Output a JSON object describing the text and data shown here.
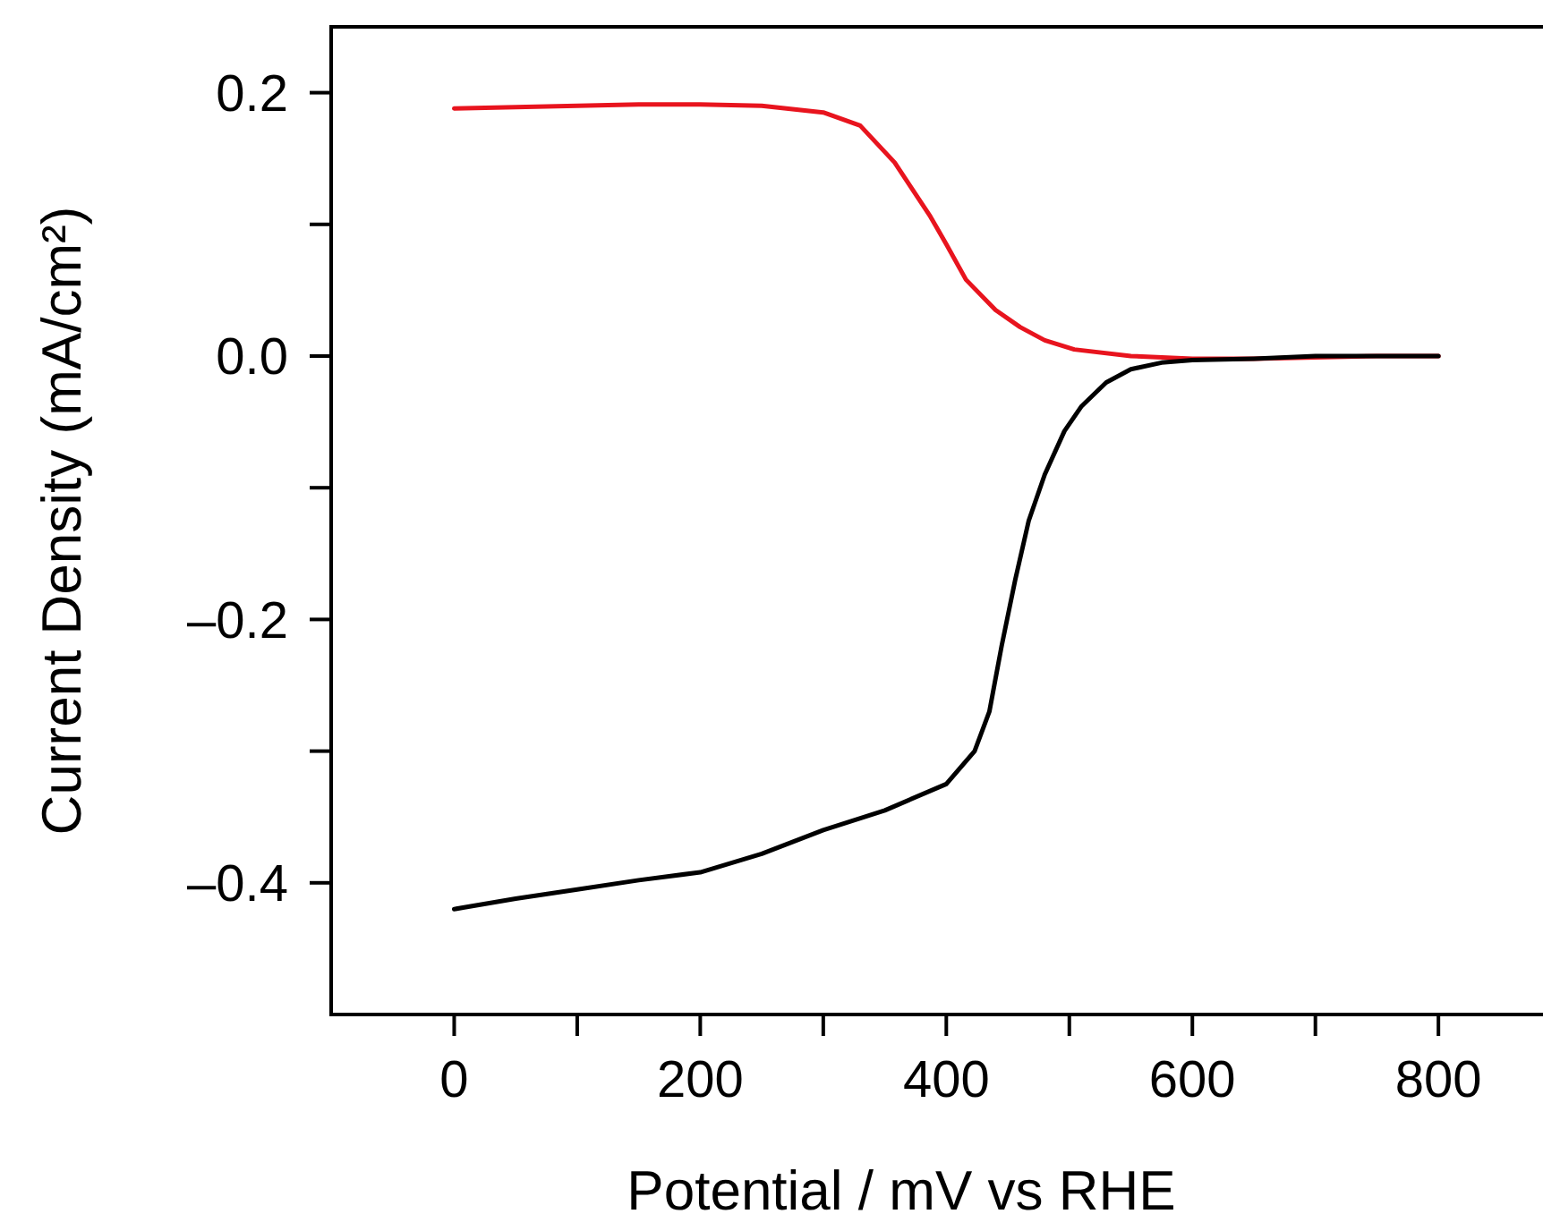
{
  "chart_data": {
    "type": "line",
    "xlabel": "Potential / mV vs RHE",
    "ylabel": "Current Density (mA/cm²)",
    "xlim": [
      -100,
      885
    ],
    "ylim": [
      -0.5,
      0.25
    ],
    "xticks": [
      0,
      {
        "value": 100,
        "label": null
      },
      200,
      {
        "value": 300,
        "label": null
      },
      400,
      {
        "value": 500,
        "label": null
      },
      600,
      {
        "value": 700,
        "label": null
      },
      800
    ],
    "yticks": [
      0.2,
      {
        "value": 0.1,
        "label": null
      },
      {
        "value": 0,
        "label": "0.0"
      },
      {
        "value": -0.1,
        "label": null
      },
      {
        "value": -0.2,
        "label": "–0.2"
      },
      {
        "value": -0.3,
        "label": null
      },
      {
        "value": -0.4,
        "label": "–0.4"
      }
    ],
    "grid": false,
    "marker": "none",
    "line_style": "solid",
    "series": [
      {
        "color": "#e8141e",
        "x": [
          0,
          50,
          100,
          150,
          200,
          250,
          300,
          330,
          358,
          387,
          400,
          416,
          440,
          460,
          480,
          504,
          550,
          600,
          650,
          700,
          750,
          800
        ],
        "values": [
          0.188,
          0.189,
          0.19,
          0.191,
          0.191,
          0.19,
          0.185,
          0.175,
          0.147,
          0.106,
          0.085,
          0.058,
          0.035,
          0.022,
          0.012,
          0.005,
          0.0,
          -0.002,
          -0.002,
          -0.001,
          0.0,
          0.0
        ]
      },
      {
        "color": "#000000",
        "x": [
          0,
          50,
          100,
          150,
          200,
          250,
          300,
          350,
          400,
          423,
          435,
          445,
          456,
          467,
          480,
          496,
          510,
          530,
          550,
          575,
          600,
          650,
          700,
          750,
          800
        ],
        "values": [
          -0.42,
          -0.412,
          -0.405,
          -0.398,
          -0.392,
          -0.378,
          -0.36,
          -0.345,
          -0.325,
          -0.3,
          -0.27,
          -0.22,
          -0.17,
          -0.125,
          -0.09,
          -0.057,
          -0.038,
          -0.02,
          -0.01,
          -0.005,
          -0.003,
          -0.002,
          0.0,
          0.0,
          0.0
        ]
      }
    ]
  }
}
